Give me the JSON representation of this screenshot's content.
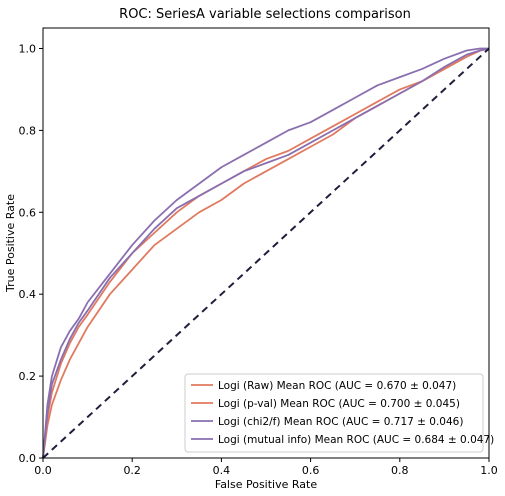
{
  "chart_data": {
    "type": "line",
    "title": "ROC: SeriesA variable selections comparison",
    "xlabel": "False Positive Rate",
    "ylabel": "True Positive Rate",
    "xlim": [
      0,
      1
    ],
    "ylim": [
      0,
      1.05
    ],
    "xticks": [
      "0.0",
      "0.2",
      "0.4",
      "0.6",
      "0.8",
      "1.0"
    ],
    "yticks": [
      "0.0",
      "0.2",
      "0.4",
      "0.6",
      "0.8",
      "1.0"
    ],
    "grid": false,
    "legend_position": "lower-right",
    "reference_line": {
      "x": [
        0,
        1
      ],
      "y": [
        0,
        1
      ],
      "color": "#1f1f3d",
      "style": "dashed"
    },
    "series": [
      {
        "name": "Logi (Raw) Mean ROC (AUC = 0.670 ± 0.047)",
        "color": "#e07a5f",
        "x": [
          0,
          0.01,
          0.02,
          0.04,
          0.06,
          0.08,
          0.1,
          0.15,
          0.2,
          0.25,
          0.3,
          0.35,
          0.4,
          0.45,
          0.5,
          0.55,
          0.6,
          0.65,
          0.7,
          0.75,
          0.8,
          0.85,
          0.9,
          0.95,
          0.98,
          1.0
        ],
        "y": [
          0,
          0.08,
          0.13,
          0.19,
          0.24,
          0.28,
          0.32,
          0.4,
          0.46,
          0.52,
          0.56,
          0.6,
          0.63,
          0.67,
          0.7,
          0.73,
          0.76,
          0.79,
          0.83,
          0.86,
          0.89,
          0.92,
          0.95,
          0.98,
          0.995,
          1.0
        ]
      },
      {
        "name": "Logi (p-val) Mean ROC (AUC = 0.700 ± 0.045)",
        "color": "#e07a5f",
        "x": [
          0,
          0.01,
          0.02,
          0.04,
          0.06,
          0.08,
          0.1,
          0.15,
          0.2,
          0.25,
          0.3,
          0.35,
          0.4,
          0.45,
          0.5,
          0.55,
          0.6,
          0.65,
          0.7,
          0.75,
          0.8,
          0.85,
          0.9,
          0.95,
          0.98,
          1.0
        ],
        "y": [
          0,
          0.1,
          0.16,
          0.23,
          0.28,
          0.32,
          0.35,
          0.43,
          0.5,
          0.55,
          0.6,
          0.64,
          0.67,
          0.7,
          0.73,
          0.75,
          0.78,
          0.81,
          0.84,
          0.87,
          0.9,
          0.92,
          0.95,
          0.98,
          0.995,
          1.0
        ]
      },
      {
        "name": "Logi (chi2/f) Mean ROC (AUC = 0.717 ± 0.046)",
        "color": "#8a6fb0",
        "x": [
          0,
          0.01,
          0.02,
          0.04,
          0.06,
          0.08,
          0.1,
          0.15,
          0.2,
          0.25,
          0.3,
          0.35,
          0.4,
          0.45,
          0.5,
          0.55,
          0.6,
          0.65,
          0.7,
          0.75,
          0.8,
          0.85,
          0.9,
          0.95,
          0.98,
          1.0
        ],
        "y": [
          0,
          0.13,
          0.2,
          0.27,
          0.31,
          0.34,
          0.38,
          0.45,
          0.52,
          0.58,
          0.63,
          0.67,
          0.71,
          0.74,
          0.77,
          0.8,
          0.82,
          0.85,
          0.88,
          0.91,
          0.93,
          0.95,
          0.975,
          0.995,
          1.0,
          1.0
        ]
      },
      {
        "name": "Logi (mutual info) Mean ROC (AUC = 0.684 ± 0.047)",
        "color": "#8a6fb0",
        "x": [
          0,
          0.01,
          0.02,
          0.04,
          0.06,
          0.08,
          0.1,
          0.15,
          0.2,
          0.25,
          0.3,
          0.35,
          0.4,
          0.45,
          0.5,
          0.55,
          0.6,
          0.65,
          0.7,
          0.75,
          0.8,
          0.85,
          0.9,
          0.95,
          0.98,
          1.0
        ],
        "y": [
          0,
          0.11,
          0.18,
          0.24,
          0.29,
          0.33,
          0.36,
          0.44,
          0.5,
          0.56,
          0.61,
          0.64,
          0.67,
          0.7,
          0.72,
          0.74,
          0.77,
          0.8,
          0.83,
          0.86,
          0.89,
          0.92,
          0.955,
          0.985,
          0.995,
          1.0
        ]
      }
    ]
  }
}
